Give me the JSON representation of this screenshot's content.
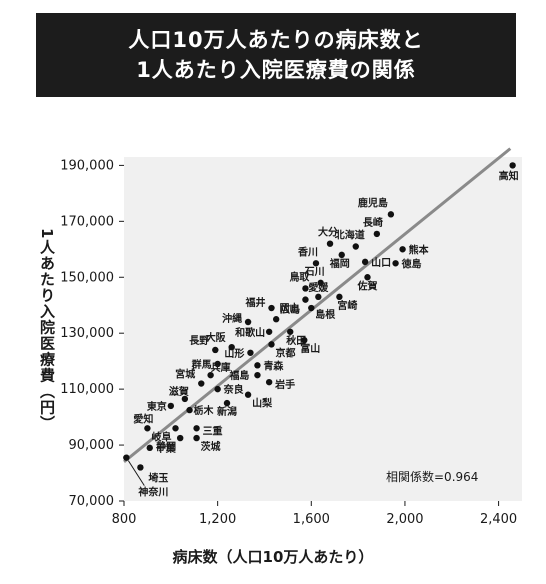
{
  "title": {
    "line1": "人口10万人あたりの病床数と",
    "line2": "1人あたり入院医療費の関係"
  },
  "chart_data": {
    "type": "scatter",
    "title": "人口10万人あたりの病床数と 1人あたり入院医療費の関係",
    "xlabel": "病床数（人口10万人あたり）",
    "ylabel": "1人あたり入院医療費（円）",
    "xlim": [
      800,
      2500
    ],
    "ylim": [
      70000,
      193000
    ],
    "x_ticks": [
      800,
      1200,
      1600,
      2000,
      2400
    ],
    "x_tick_labels": [
      "800",
      "1,200",
      "1,600",
      "2,000",
      "2,400"
    ],
    "y_ticks": [
      70000,
      90000,
      110000,
      130000,
      150000,
      170000,
      190000
    ],
    "y_tick_labels": [
      "70,000",
      "90,000",
      "110,000",
      "130,000",
      "150,000",
      "170,000",
      "190,000"
    ],
    "grid": false,
    "trendline": {
      "x": [
        800,
        2450
      ],
      "y": [
        84000,
        196000
      ]
    },
    "annotation": "相関係数=0.964",
    "points": [
      {
        "name": "高知",
        "x": 2460,
        "y": 190000
      },
      {
        "name": "鹿児島",
        "x": 1940,
        "y": 172500
      },
      {
        "name": "長崎",
        "x": 1880,
        "y": 165500
      },
      {
        "name": "大分",
        "x": 1680,
        "y": 162000
      },
      {
        "name": "北海道",
        "x": 1790,
        "y": 161000
      },
      {
        "name": "熊本",
        "x": 1990,
        "y": 160000
      },
      {
        "name": "福岡",
        "x": 1730,
        "y": 158000
      },
      {
        "name": "香川",
        "x": 1620,
        "y": 155000
      },
      {
        "name": "山口",
        "x": 1830,
        "y": 155500
      },
      {
        "name": "徳島",
        "x": 1960,
        "y": 155000
      },
      {
        "name": "鳥取",
        "x": 1575,
        "y": 146000
      },
      {
        "name": "石川",
        "x": 1640,
        "y": 148000
      },
      {
        "name": "佐賀",
        "x": 1840,
        "y": 150000
      },
      {
        "name": "岡山",
        "x": 1575,
        "y": 142000
      },
      {
        "name": "愛媛",
        "x": 1630,
        "y": 143000
      },
      {
        "name": "宮崎",
        "x": 1720,
        "y": 143000
      },
      {
        "name": "福井",
        "x": 1430,
        "y": 139000
      },
      {
        "name": "島根",
        "x": 1600,
        "y": 139000
      },
      {
        "name": "沖縄",
        "x": 1330,
        "y": 134000
      },
      {
        "name": "広島",
        "x": 1450,
        "y": 135000
      },
      {
        "name": "和歌山",
        "x": 1420,
        "y": 130500
      },
      {
        "name": "秋田",
        "x": 1510,
        "y": 130500
      },
      {
        "name": "大阪",
        "x": 1260,
        "y": 125000
      },
      {
        "name": "京都",
        "x": 1430,
        "y": 126000
      },
      {
        "name": "富山",
        "x": 1570,
        "y": 127500
      },
      {
        "name": "長野",
        "x": 1190,
        "y": 124000
      },
      {
        "name": "山形",
        "x": 1340,
        "y": 123000
      },
      {
        "name": "群馬",
        "x": 1200,
        "y": 119000
      },
      {
        "name": "青森",
        "x": 1370,
        "y": 118500
      },
      {
        "name": "兵庫",
        "x": 1170,
        "y": 115000
      },
      {
        "name": "宮城",
        "x": 1130,
        "y": 112000
      },
      {
        "name": "奈良",
        "x": 1200,
        "y": 110000
      },
      {
        "name": "福島",
        "x": 1370,
        "y": 115000
      },
      {
        "name": "岩手",
        "x": 1420,
        "y": 112500
      },
      {
        "name": "山梨",
        "x": 1330,
        "y": 108000
      },
      {
        "name": "滋賀",
        "x": 1060,
        "y": 106500
      },
      {
        "name": "東京",
        "x": 1000,
        "y": 104000
      },
      {
        "name": "新潟",
        "x": 1240,
        "y": 105000
      },
      {
        "name": "栃木",
        "x": 1080,
        "y": 102500
      },
      {
        "name": "愛知",
        "x": 900,
        "y": 96000
      },
      {
        "name": "岐阜",
        "x": 1020,
        "y": 96000
      },
      {
        "name": "三重",
        "x": 1110,
        "y": 96000
      },
      {
        "name": "静岡",
        "x": 1040,
        "y": 92500
      },
      {
        "name": "茨城",
        "x": 1110,
        "y": 92500
      },
      {
        "name": "千葉",
        "x": 910,
        "y": 89000
      },
      {
        "name": "埼玉",
        "x": 870,
        "y": 82000
      },
      {
        "name": "神奈川",
        "x": 810,
        "y": 85500
      }
    ]
  }
}
